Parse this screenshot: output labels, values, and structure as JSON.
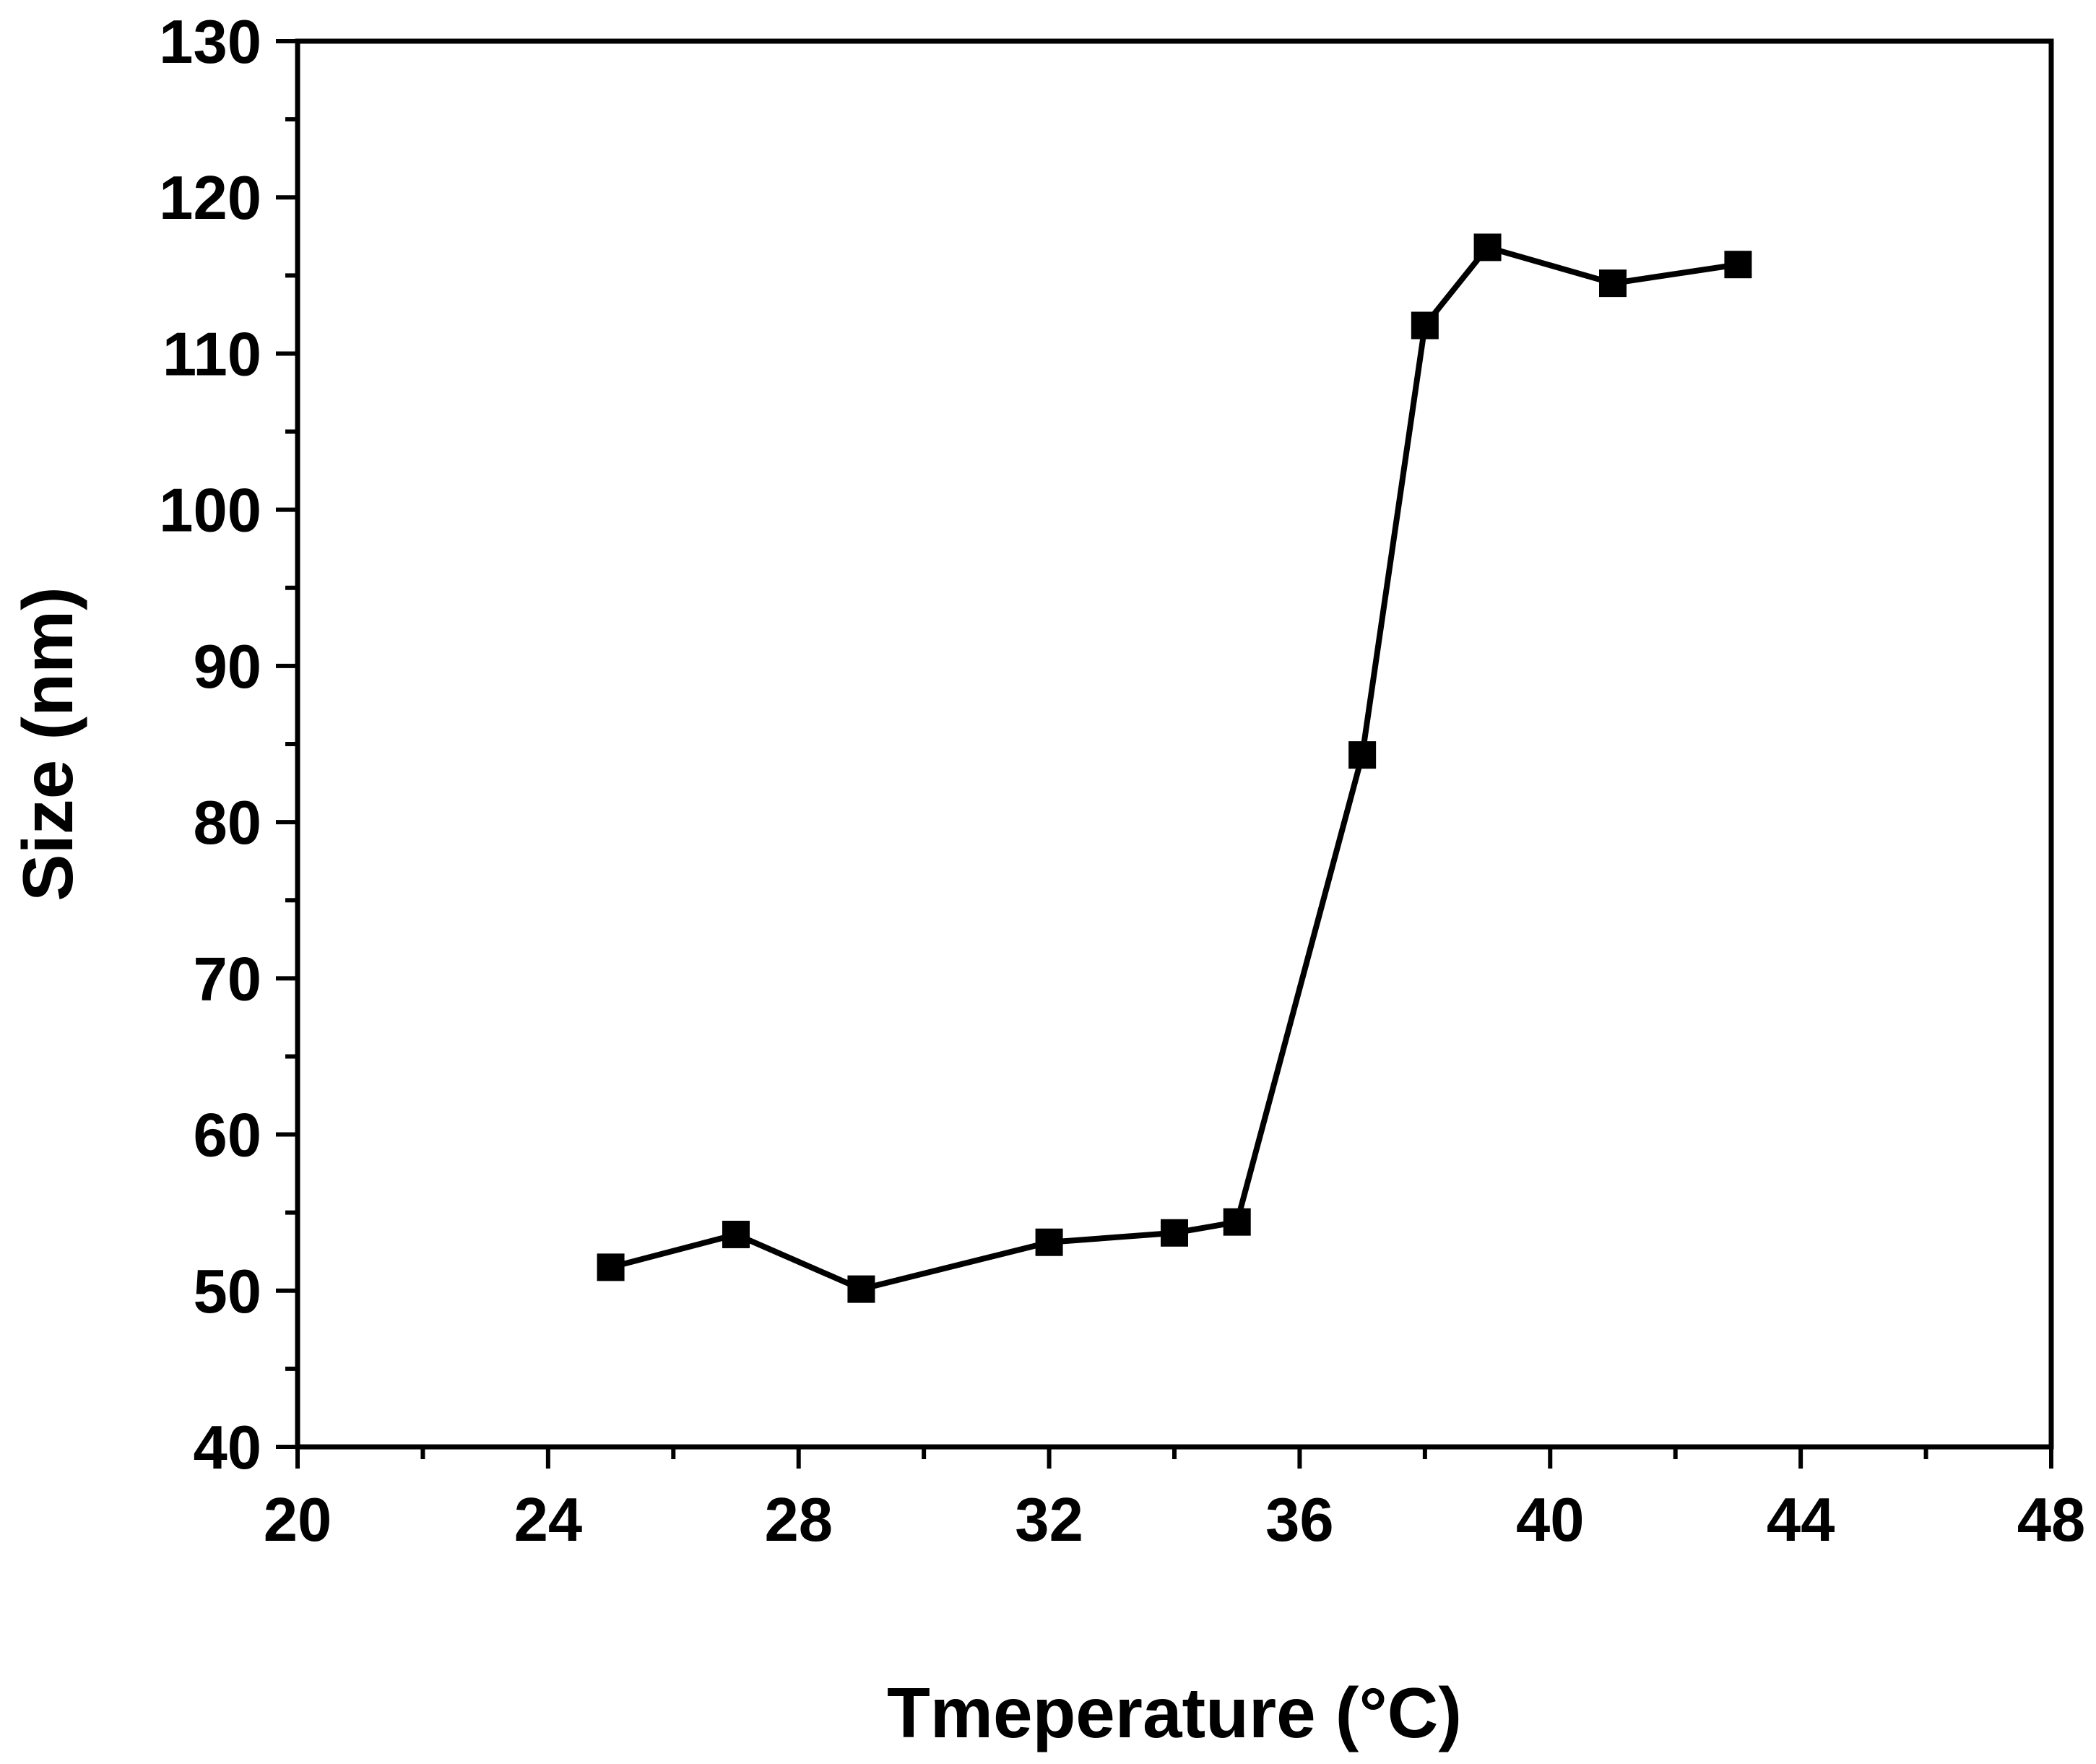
{
  "chart_data": {
    "type": "line",
    "xlabel": "Tmeperature (°C)",
    "ylabel": "Size (nm)",
    "xlim": [
      20,
      48
    ],
    "ylim": [
      40,
      130
    ],
    "x_ticks": [
      20,
      24,
      28,
      32,
      36,
      40,
      44,
      48
    ],
    "y_ticks": [
      40,
      50,
      60,
      70,
      80,
      90,
      100,
      110,
      120,
      130
    ],
    "x_tick_labels": [
      "20",
      "24",
      "28",
      "32",
      "36",
      "40",
      "44",
      "48"
    ],
    "y_tick_labels": [
      "40",
      "50",
      "60",
      "70",
      "80",
      "90",
      "100",
      "110",
      "120",
      "130"
    ],
    "grid": false,
    "legend": "none",
    "marker": "square",
    "color": "#000000",
    "series": [
      {
        "x": [
          25,
          27,
          29,
          32,
          34,
          35,
          37,
          38,
          39,
          41,
          43
        ],
        "y": [
          51.5,
          53.6,
          50.1,
          53.1,
          53.7,
          54.4,
          84.3,
          111.8,
          116.8,
          114.5,
          115.7
        ]
      }
    ]
  }
}
